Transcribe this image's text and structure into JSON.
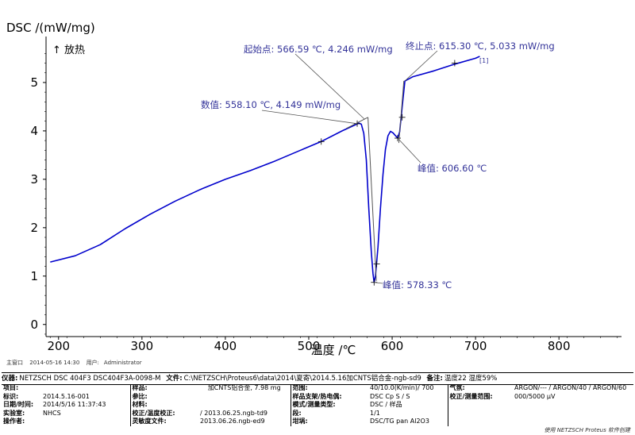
{
  "chart_data": {
    "type": "line",
    "ylabel": "DSC /(mW/mg)",
    "y_direction_label": "↑ 放热",
    "xlabel": "温度 /℃",
    "xlim": [
      185,
      875
    ],
    "ylim": [
      -0.25,
      5.95
    ],
    "x_ticks": [
      200,
      300,
      400,
      500,
      600,
      700,
      800
    ],
    "y_ticks": [
      0,
      1,
      2,
      3,
      4,
      5
    ],
    "line_color": "#0000cc",
    "annotation_color": "#333399",
    "series": [
      {
        "values": [
          [
            190,
            1.29
          ],
          [
            220,
            1.42
          ],
          [
            250,
            1.65
          ],
          [
            280,
            1.98
          ],
          [
            310,
            2.28
          ],
          [
            340,
            2.55
          ],
          [
            370,
            2.79
          ],
          [
            400,
            3.0
          ],
          [
            430,
            3.18
          ],
          [
            460,
            3.38
          ],
          [
            490,
            3.6
          ],
          [
            515,
            3.78
          ],
          [
            540,
            4.0
          ],
          [
            555,
            4.12
          ],
          [
            560,
            4.16
          ],
          [
            563,
            4.14
          ],
          [
            566,
            3.95
          ],
          [
            569,
            3.4
          ],
          [
            572,
            2.4
          ],
          [
            575,
            1.5
          ],
          [
            577,
            1.05
          ],
          [
            578.33,
            0.87
          ],
          [
            580,
            1.0
          ],
          [
            583,
            1.6
          ],
          [
            586,
            2.4
          ],
          [
            589,
            3.1
          ],
          [
            592,
            3.62
          ],
          [
            595,
            3.9
          ],
          [
            598,
            3.99
          ],
          [
            601,
            3.96
          ],
          [
            604,
            3.9
          ],
          [
            606.6,
            3.85
          ],
          [
            609,
            3.98
          ],
          [
            612,
            4.5
          ],
          [
            615.3,
            5.03
          ],
          [
            625,
            5.12
          ],
          [
            650,
            5.24
          ],
          [
            675,
            5.38
          ],
          [
            700,
            5.5
          ],
          [
            705,
            5.54
          ]
        ]
      }
    ],
    "tick_markers": [
      [
        515,
        3.78
      ],
      [
        558.1,
        4.149
      ],
      [
        578.33,
        0.87
      ],
      [
        581.5,
        1.25
      ],
      [
        606.6,
        3.85
      ],
      [
        612,
        4.28
      ],
      [
        675,
        5.4
      ]
    ],
    "annotations": [
      {
        "text": "起始点: 566.59 ℃, 4.246 mW/mg"
      },
      {
        "text": "数值: 558.10 ℃, 4.149 mW/mg"
      },
      {
        "text": "终止点: 615.30 ℃, 5.033 mW/mg"
      },
      {
        "text": "峰值: 606.60 ℃"
      },
      {
        "text": "峰值: 578.33 ℃"
      },
      {
        "text": "[1]"
      }
    ]
  },
  "meta": {
    "main_window_label": "主窗口",
    "datetime": "2014-05-16 14:30",
    "user_label": "用户:",
    "user": "Administrator"
  },
  "instrument": {
    "instrument_label": "仪器:",
    "instrument": "NETZSCH DSC 404F3 DSC404F3A-0098-M",
    "file_label": "文件:",
    "file": "C:\\NETZSCH\\Proteus6\\data\\2014\\夏寄\\2014.5.16加CNTS铝合金-ngb-sd9",
    "remark_label": "备注:",
    "remark": "温度22 湿度59%"
  },
  "info_rows": [
    [
      "项目:",
      "",
      "样品:",
      "加CNTS铝合金, 7.98 mg",
      "范围:",
      "40/10.0(K/min)/ 700",
      "气氛:",
      "ARGON/--- / ARGON/40 / ARGON/60"
    ],
    [
      "标识:",
      "2014.5.16-001",
      "参比:",
      "",
      "样品支架/热电偶:",
      "DSC Cp S / S",
      "校正/测量范围:",
      "000/5000 μV"
    ],
    [
      "日期/时间:",
      "2014/5/16 11:37:43",
      "材料:",
      "",
      "模式/测量类型:",
      "DSC / 样品",
      "",
      ""
    ],
    [
      "实验室:",
      "NHCS",
      "校正/温度校正:",
      "/ 2013.06.25.ngb-td9",
      "段:",
      "1/1",
      "",
      ""
    ],
    [
      "操作者:",
      "",
      "灵敏度文件:",
      "2013.06.26.ngb-ed9",
      "坩埚:",
      "DSC/TG pan Al2O3",
      "",
      ""
    ]
  ],
  "brand": "使用 NETZSCH Proteus 软件创建"
}
